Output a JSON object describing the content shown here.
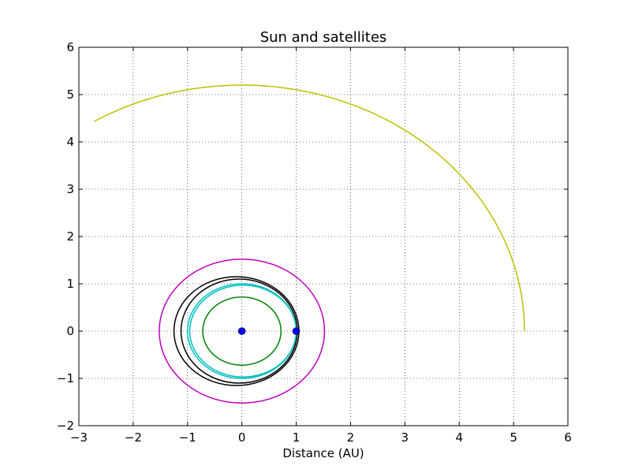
{
  "chart_data": {
    "type": "line",
    "title": "Sun and satellites",
    "xlabel": "Distance (AU)",
    "ylabel": "",
    "xlim": [
      -3,
      6
    ],
    "ylim": [
      -2,
      6
    ],
    "xticks": [
      -3,
      -2,
      -1,
      0,
      1,
      2,
      3,
      4,
      5,
      6
    ],
    "yticks": [
      -2,
      -1,
      0,
      1,
      2,
      3,
      4,
      5,
      6
    ],
    "xtick_labels": [
      "−3",
      "−2",
      "−1",
      "0",
      "1",
      "2",
      "3",
      "4",
      "5",
      "6"
    ],
    "ytick_labels": [
      "−2",
      "−1",
      "0",
      "1",
      "2",
      "3",
      "4",
      "5",
      "6"
    ],
    "grid": true,
    "colors": {
      "magenta": "#bf00bf",
      "black": "#000000",
      "cyan": "#00bfbf",
      "green": "#008000",
      "yellow": "#bfbf00",
      "marker": "#0000ff"
    },
    "series": [
      {
        "kind": "ellipse",
        "color": "magenta",
        "cx": 0,
        "cy": 0,
        "rx": 1.52,
        "ry": 1.52
      },
      {
        "kind": "ellipse",
        "color": "black",
        "cx": -0.1,
        "cy": 0,
        "rx": 1.15,
        "ry": 1.15
      },
      {
        "kind": "ellipse",
        "color": "black",
        "cx": -0.05,
        "cy": 0,
        "rx": 1.07,
        "ry": 1.1
      },
      {
        "kind": "ellipse",
        "color": "cyan",
        "cx": 0,
        "cy": 0,
        "rx": 1.0,
        "ry": 1.0
      },
      {
        "kind": "ellipse",
        "color": "cyan",
        "cx": 0.02,
        "cy": 0,
        "rx": 0.98,
        "ry": 0.97
      },
      {
        "kind": "ellipse",
        "color": "green",
        "cx": 0,
        "cy": 0,
        "rx": 0.72,
        "ry": 0.72
      },
      {
        "kind": "arc",
        "color": "yellow",
        "r": 5.2,
        "start_deg": 0,
        "end_deg": 121.5
      }
    ],
    "points": [
      {
        "x": 0,
        "y": 0,
        "color": "marker"
      },
      {
        "x": 1,
        "y": 0,
        "color": "marker"
      }
    ]
  }
}
